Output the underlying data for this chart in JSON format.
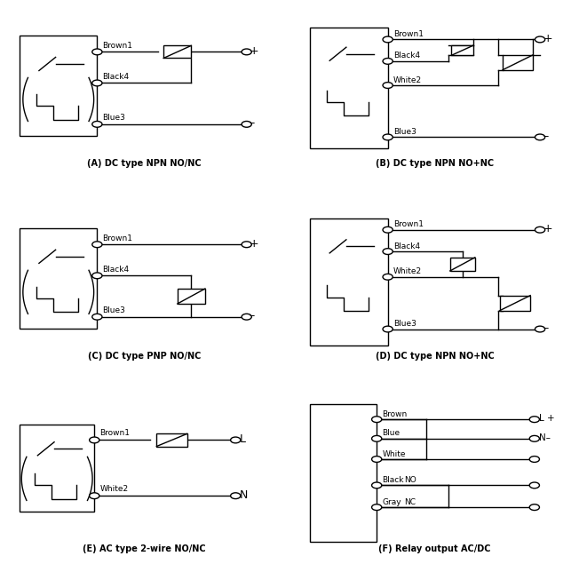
{
  "bg": "#ffffff",
  "lc": "#000000",
  "lw": 1.0,
  "panels": {
    "A": {
      "title": "(A) DC type NPN NO/NC"
    },
    "B": {
      "title": "(B) DC type NPN NO+NC"
    },
    "C": {
      "title": "(C) DC type PNP NO/NC"
    },
    "D": {
      "title": "(D) DC type NPN NO+NC"
    },
    "E": {
      "title": "(E) AC type 2-wire NO/NC"
    },
    "F": {
      "title": "(F) Relay output AC/DC"
    }
  },
  "wire_labels": {
    "A": [
      "Brown1",
      "Black4",
      "Blue3"
    ],
    "B": [
      "Brown1",
      "Black4",
      "White2",
      "Blue3"
    ],
    "C": [
      "Brown1",
      "Black4",
      "Blue3"
    ],
    "D": [
      "Brown1",
      "Black4",
      "White2",
      "Blue3"
    ],
    "E": [
      "Brown1",
      "White2"
    ],
    "F": [
      "Brown",
      "Blue",
      "White",
      "Black",
      "Gray"
    ]
  }
}
